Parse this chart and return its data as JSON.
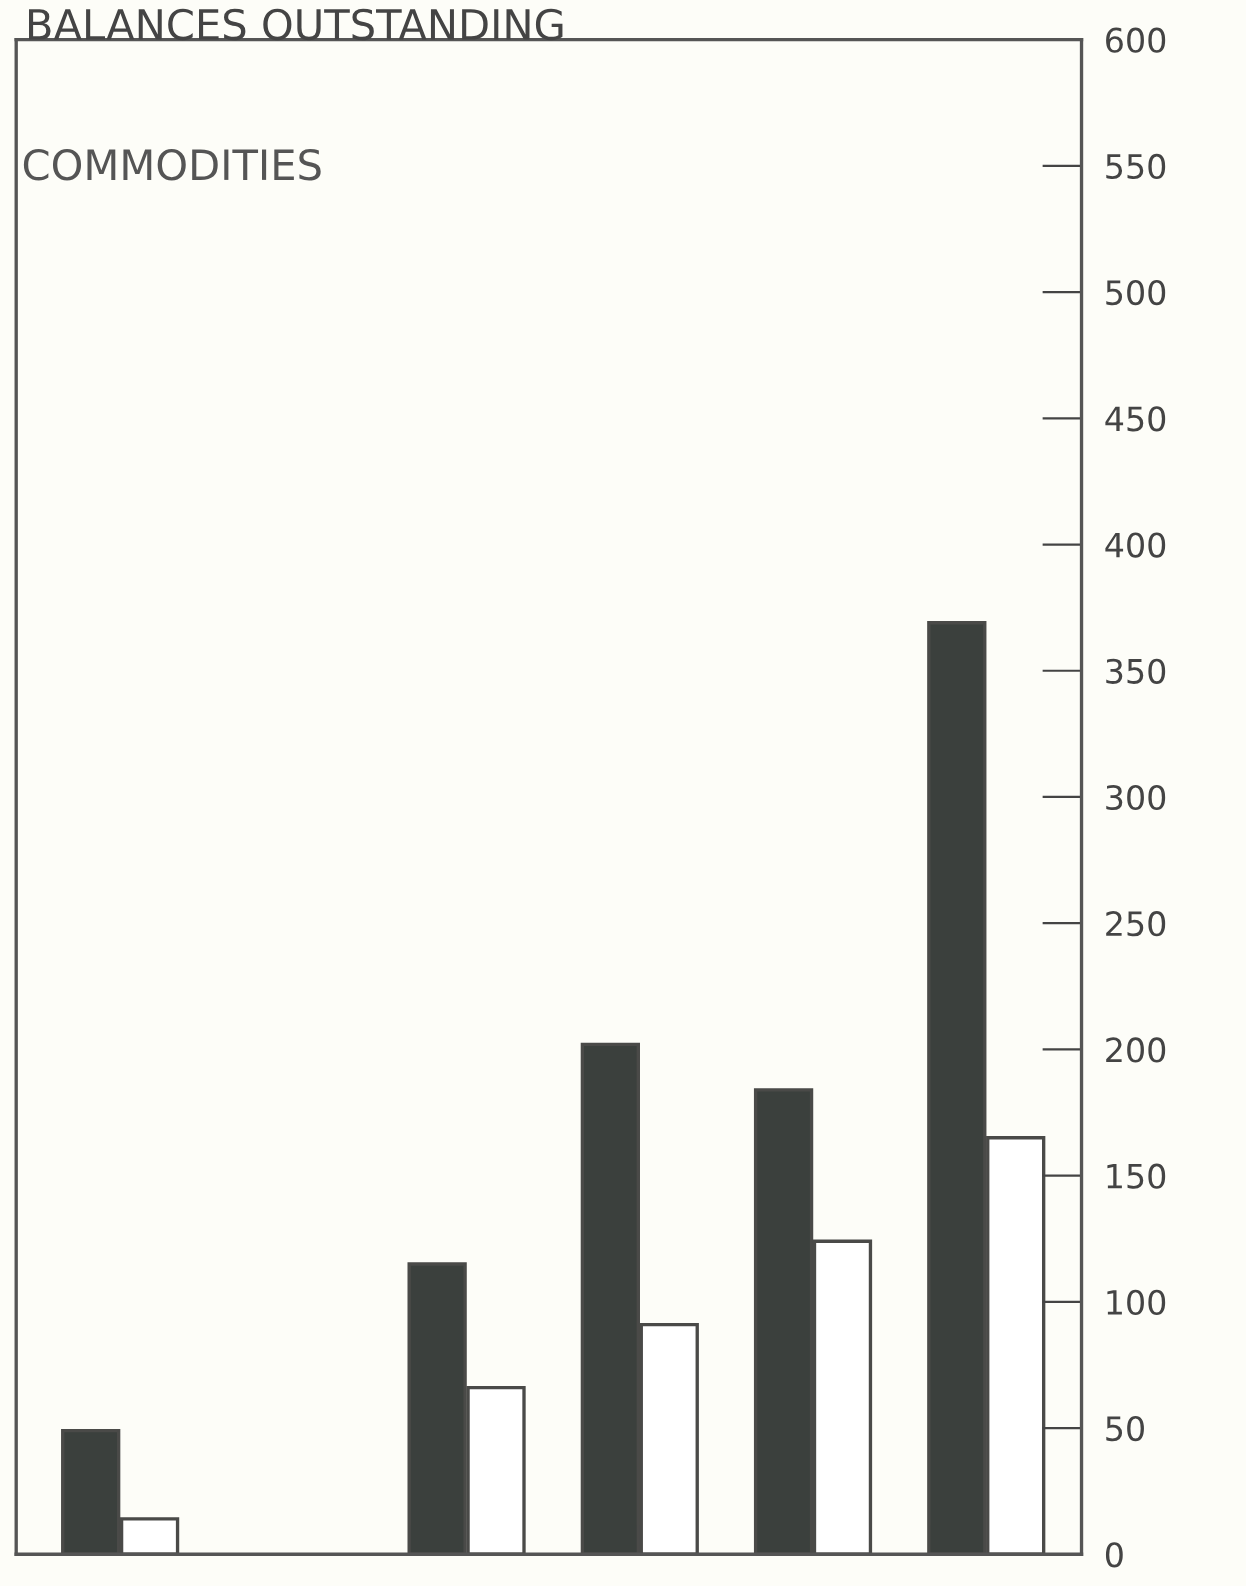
{
  "chart_data": {
    "type": "bar",
    "title": "BALANCES OUTSTANDING",
    "annotations": [
      "COMMODITIES"
    ],
    "categories": [
      null,
      null,
      null,
      null,
      null,
      null
    ],
    "series": [
      {
        "color": "#3b403d",
        "values": [
          49,
          null,
          115,
          202,
          184,
          369
        ]
      },
      {
        "color": "#ffffff",
        "values": [
          14,
          null,
          66,
          91,
          124,
          165
        ]
      }
    ],
    "ylim": [
      0,
      600
    ],
    "yticks": [
      0,
      50,
      100,
      150,
      200,
      250,
      300,
      350,
      400,
      450,
      500,
      550,
      600
    ],
    "grid": false,
    "legend": false
  }
}
